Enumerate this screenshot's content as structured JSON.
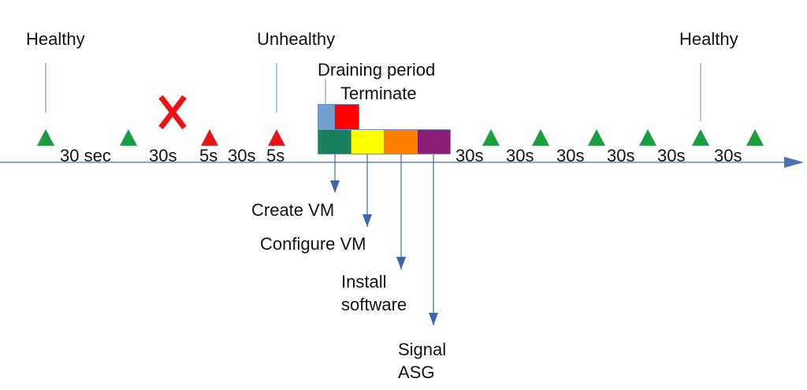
{
  "diagram": {
    "title_labels": {
      "healthy_start": "Healthy",
      "unhealthy": "Unhealthy",
      "healthy_end": "Healthy"
    },
    "phase_labels": {
      "draining": "Draining period",
      "terminate": "Terminate"
    },
    "step_labels": [
      "Create VM",
      "Configure VM",
      "Install\nsoftware",
      "Signal\nASG"
    ],
    "durations": [
      "30 sec",
      "30s",
      "5s",
      "30s",
      "5s",
      "30s",
      "30s",
      "30s",
      "30s",
      "30s",
      "30s"
    ],
    "health_checks": [
      {
        "status": "healthy"
      },
      {
        "status": "healthy"
      },
      {
        "status": "unhealthy"
      },
      {
        "status": "unhealthy"
      },
      {
        "status": "healthy"
      },
      {
        "status": "healthy"
      },
      {
        "status": "healthy"
      },
      {
        "status": "healthy"
      },
      {
        "status": "healthy"
      },
      {
        "status": "healthy"
      }
    ],
    "failure_marker": "x-mark",
    "colors": {
      "healthy": "#1a9e3a",
      "unhealthy": "#ee1111",
      "axis": "#4a72b0",
      "draining": "#729fcf",
      "terminate": "#ff0000",
      "create_vm": "#1a7f5e",
      "configure_vm": "#ffff00",
      "install_software": "#ff7f00",
      "signal_asg": "#8b1f78",
      "failure": "#ee1111"
    }
  }
}
